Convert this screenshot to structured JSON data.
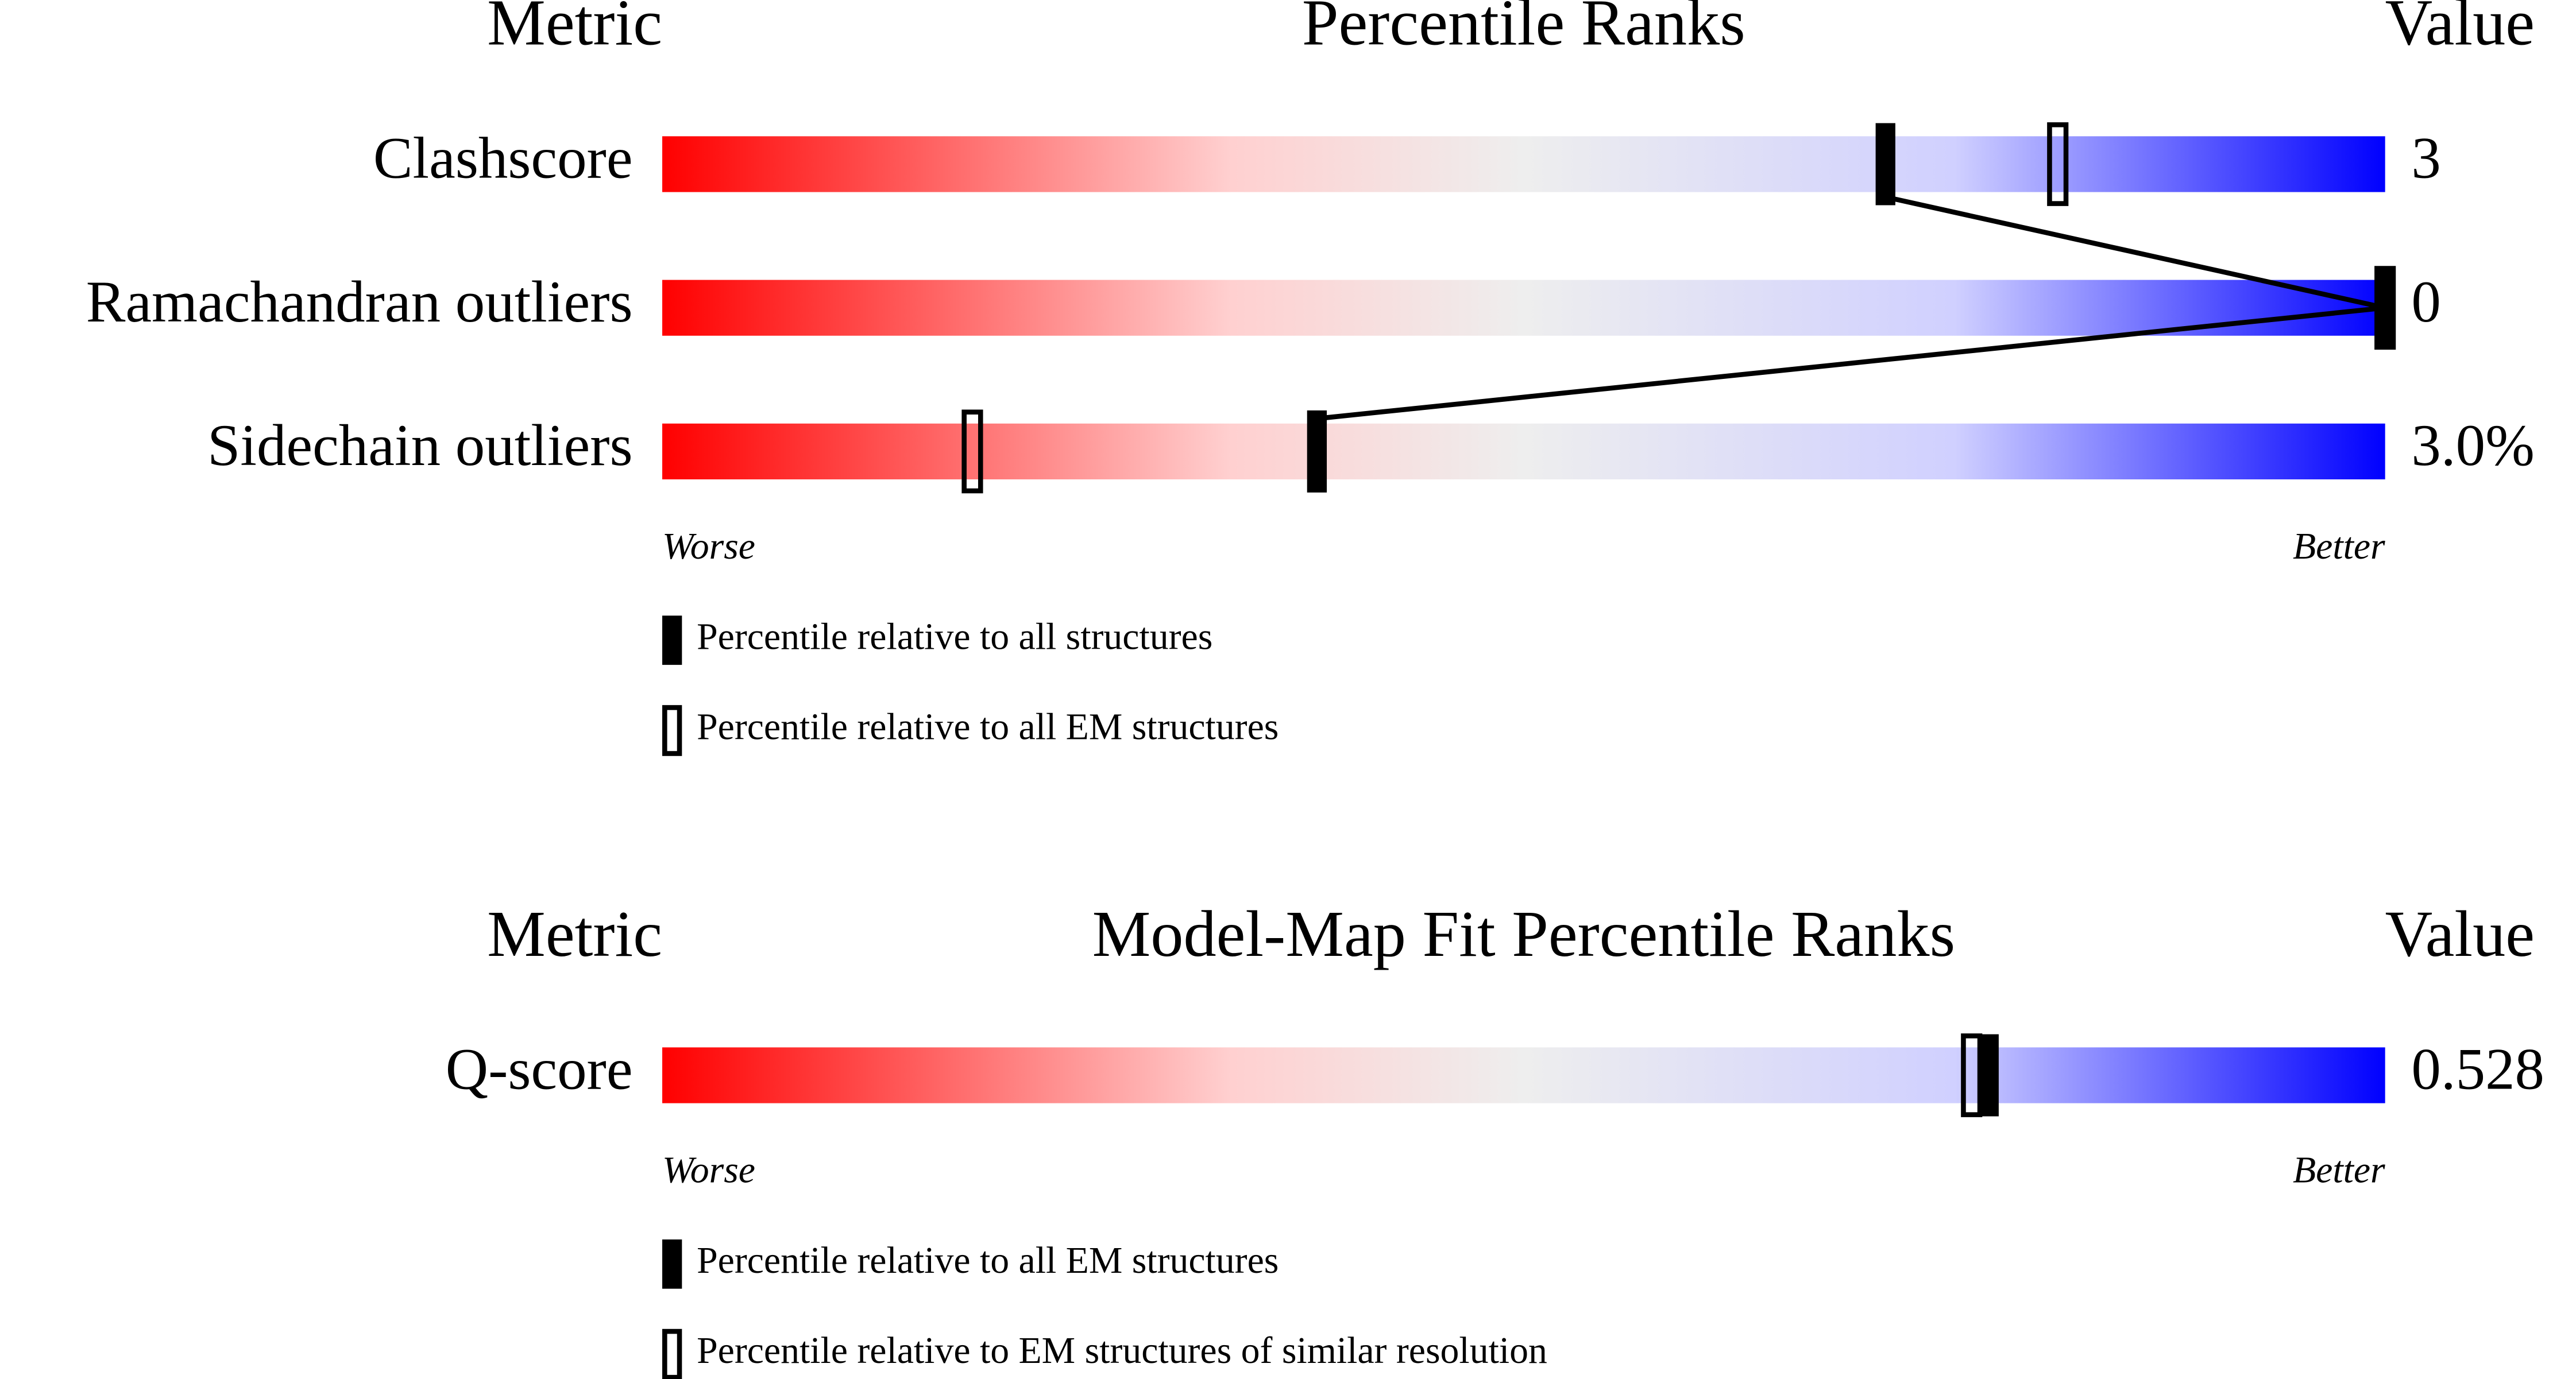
{
  "chart_data": [
    {
      "type": "percentile-slider",
      "metric_header": "Metric",
      "title": "Percentile Ranks",
      "value_header": "Value",
      "categories": [
        "Clashscore",
        "Ramachandran outliers",
        "Sidechain outliers"
      ],
      "metric_values": [
        "3",
        "0",
        "3.0%"
      ],
      "xlim": [
        0,
        100
      ],
      "low_label": "Worse",
      "high_label": "Better",
      "connect_first_series": true,
      "series": [
        {
          "name": "Percentile relative to all structures",
          "style": "filled",
          "color": "#000000",
          "values": [
            71,
            100,
            38
          ]
        },
        {
          "name": "Percentile relative to all EM structures",
          "style": "open",
          "color": "#000000",
          "values": [
            81,
            100,
            18
          ]
        }
      ]
    },
    {
      "type": "percentile-slider",
      "metric_header": "Metric",
      "title": "Model-Map Fit Percentile Ranks",
      "value_header": "Value",
      "categories": [
        "Q-score"
      ],
      "metric_values": [
        "0.528"
      ],
      "xlim": [
        0,
        100
      ],
      "low_label": "Worse",
      "high_label": "Better",
      "connect_first_series": false,
      "series": [
        {
          "name": "Percentile relative to all EM structures",
          "style": "filled",
          "color": "#000000",
          "values": [
            77
          ]
        },
        {
          "name": "Percentile relative to EM structures of similar resolution",
          "style": "open",
          "color": "#000000",
          "values": [
            76
          ]
        }
      ]
    }
  ]
}
